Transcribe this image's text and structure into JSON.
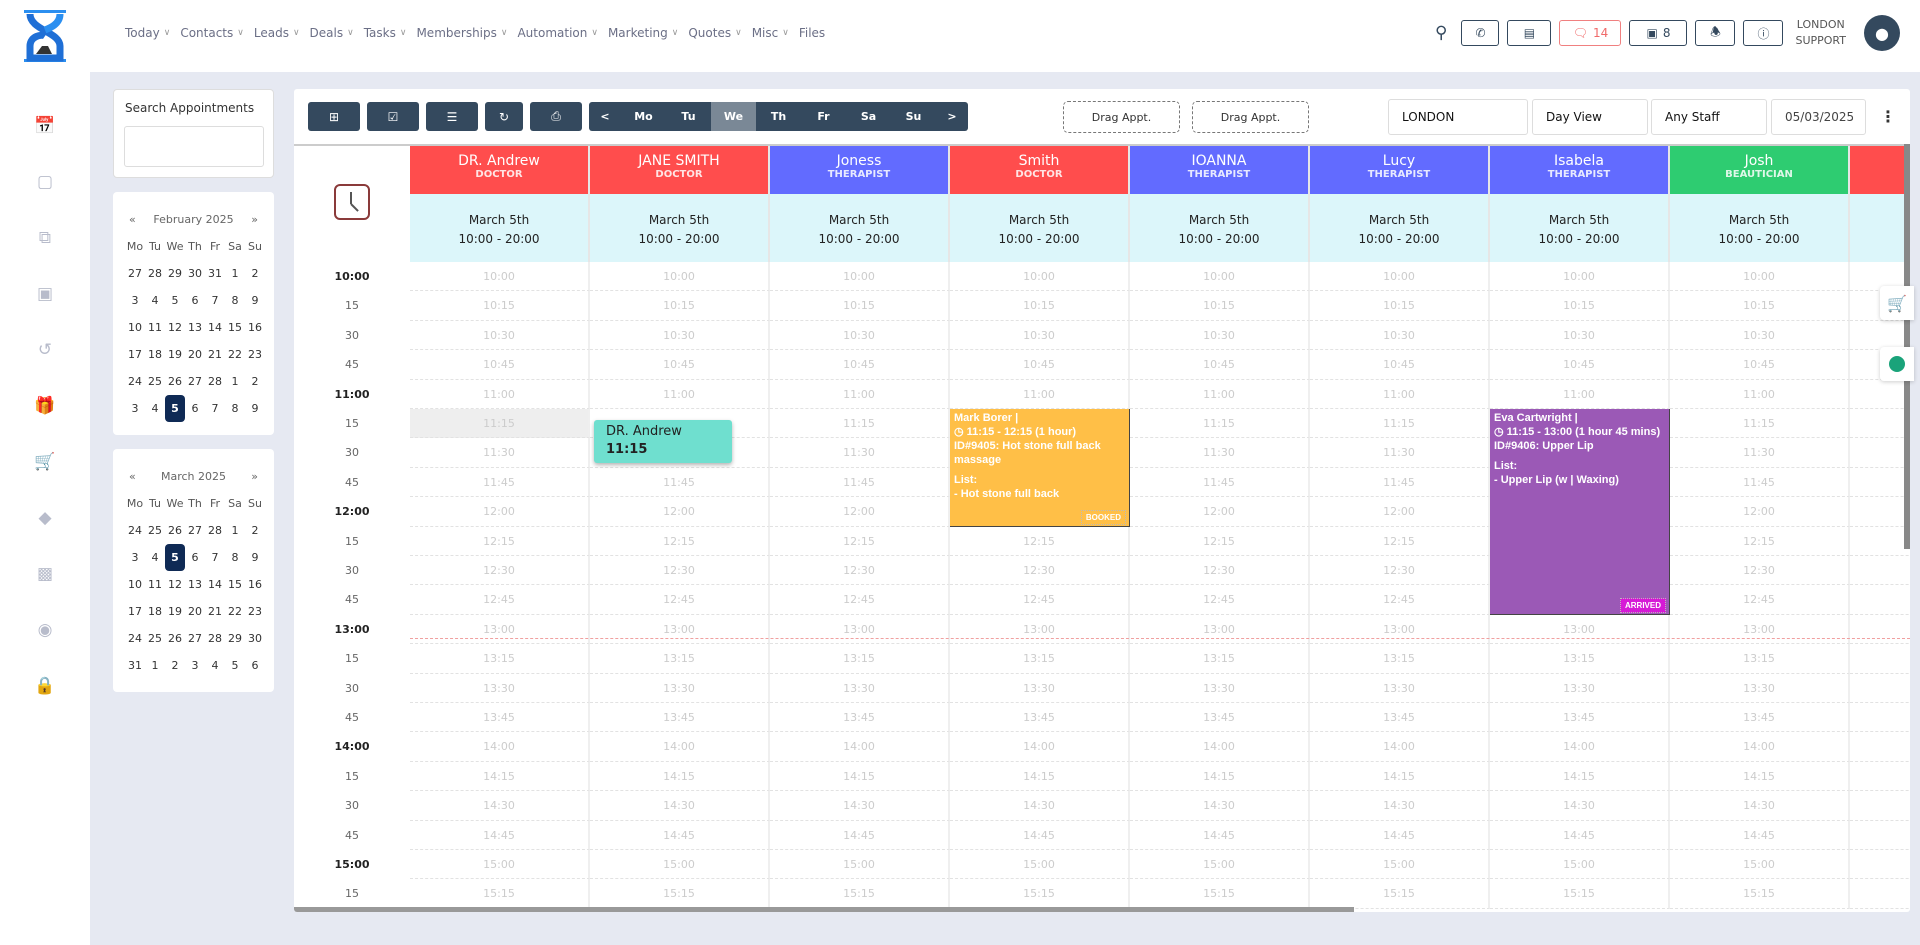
{
  "nav": [
    "Today",
    "Contacts",
    "Leads",
    "Deals",
    "Tasks",
    "Memberships",
    "Automation",
    "Marketing",
    "Quotes",
    "Misc",
    "Files"
  ],
  "header": {
    "messages_count": "14",
    "store_count": "8",
    "user_line1": "LONDON",
    "user_line2": "SUPPORT"
  },
  "sidebar": {
    "search_title": "Search Appointments",
    "search_placeholder": ""
  },
  "calendars": [
    {
      "title": "February 2025",
      "prev": "«",
      "next": "»",
      "days": [
        "Mo",
        "Tu",
        "We",
        "Th",
        "Fr",
        "Sa",
        "Su"
      ],
      "weeks": [
        [
          "27",
          "28",
          "29",
          "30",
          "31",
          "1",
          "2"
        ],
        [
          "3",
          "4",
          "5",
          "6",
          "7",
          "8",
          "9"
        ],
        [
          "10",
          "11",
          "12",
          "13",
          "14",
          "15",
          "16"
        ],
        [
          "17",
          "18",
          "19",
          "20",
          "21",
          "22",
          "23"
        ],
        [
          "24",
          "25",
          "26",
          "27",
          "28",
          "1",
          "2"
        ],
        [
          "3",
          "4",
          "5",
          "6",
          "7",
          "8",
          "9"
        ]
      ],
      "selected": [
        5,
        2
      ]
    },
    {
      "title": "March 2025",
      "prev": "«",
      "next": "»",
      "days": [
        "Mo",
        "Tu",
        "We",
        "Th",
        "Fr",
        "Sa",
        "Su"
      ],
      "weeks": [
        [
          "24",
          "25",
          "26",
          "27",
          "28",
          "1",
          "2"
        ],
        [
          "3",
          "4",
          "5",
          "6",
          "7",
          "8",
          "9"
        ],
        [
          "10",
          "11",
          "12",
          "13",
          "14",
          "15",
          "16"
        ],
        [
          "17",
          "18",
          "19",
          "20",
          "21",
          "22",
          "23"
        ],
        [
          "24",
          "25",
          "26",
          "27",
          "28",
          "29",
          "30"
        ],
        [
          "31",
          "1",
          "2",
          "3",
          "4",
          "5",
          "6"
        ]
      ],
      "selected": [
        1,
        2
      ]
    }
  ],
  "toolbar": {
    "days": [
      "<",
      "Mo",
      "Tu",
      "We",
      "Th",
      "Fr",
      "Sa",
      "Su",
      ">"
    ],
    "active_day": "We",
    "drag1": "Drag Appt.",
    "drag2": "Drag Appt.",
    "location": "LONDON",
    "view": "Day View",
    "staff": "Any Staff",
    "date": "05/03/2025"
  },
  "staff": [
    {
      "name": "DR. Andrew",
      "role": "DOCTOR",
      "color": "#ff4d4d",
      "date": "March 5th",
      "hours": "10:00 - 20:00"
    },
    {
      "name": "JANE SMITH",
      "role": "DOCTOR",
      "color": "#ff4d4d",
      "date": "March 5th",
      "hours": "10:00 - 20:00"
    },
    {
      "name": "Joness",
      "role": "THERAPIST",
      "color": "#626bff",
      "date": "March 5th",
      "hours": "10:00 - 20:00"
    },
    {
      "name": "Smith",
      "role": "DOCTOR",
      "color": "#ff4d4d",
      "date": "March 5th",
      "hours": "10:00 - 20:00"
    },
    {
      "name": "IOANNA",
      "role": "THERAPIST",
      "color": "#626bff",
      "date": "March 5th",
      "hours": "10:00 - 20:00"
    },
    {
      "name": "Lucy",
      "role": "THERAPIST",
      "color": "#626bff",
      "date": "March 5th",
      "hours": "10:00 - 20:00"
    },
    {
      "name": "Isabela",
      "role": "THERAPIST",
      "color": "#626bff",
      "date": "March 5th",
      "hours": "10:00 - 20:00"
    },
    {
      "name": "Josh",
      "role": "BEAUTICIAN",
      "color": "#2ecc71",
      "date": "March 5th",
      "hours": "10:00 - 20:00"
    },
    {
      "name": "",
      "role": "",
      "color": "#ff4d4d",
      "date": "",
      "hours": ""
    }
  ],
  "times": [
    "10:00",
    "10:15",
    "10:30",
    "10:45",
    "11:00",
    "11:15",
    "11:30",
    "11:45",
    "12:00",
    "12:15",
    "12:30",
    "12:45",
    "13:00",
    "13:15",
    "13:30",
    "13:45",
    "14:00",
    "14:15",
    "14:30",
    "14:45",
    "15:00",
    "15:15"
  ],
  "time_labels": [
    "10:00",
    "15",
    "30",
    "45",
    "11:00",
    "15",
    "30",
    "45",
    "12:00",
    "15",
    "30",
    "45",
    "13:00",
    "15",
    "30",
    "45",
    "14:00",
    "15",
    "30",
    "45",
    "15:00",
    "15"
  ],
  "appointments": [
    {
      "staff_index": 3,
      "start": "11:15",
      "rows": 4,
      "color": "#ffbf47",
      "lines": [
        "Mark Borer |",
        "◷ 11:15 - 12:15 (1 hour)",
        "ID#9405: Hot stone full back massage",
        "",
        "List:",
        "- Hot stone full back"
      ],
      "status": "BOOKED",
      "status_color": "#ffbf47"
    },
    {
      "staff_index": 6,
      "start": "11:15",
      "rows": 7,
      "color": "#9b59b6",
      "lines": [
        "Eva Cartwright |",
        "◷ 11:15 - 13:00 (1 hour 45 mins)",
        "ID#9406: Upper Lip",
        "",
        "List:",
        "- Upper Lip (w | Waxing)"
      ],
      "status": "ARRIVED",
      "status_color": "#d61ad6"
    }
  ],
  "drag_ghost": {
    "name": "DR. Andrew",
    "time": "11:15"
  }
}
